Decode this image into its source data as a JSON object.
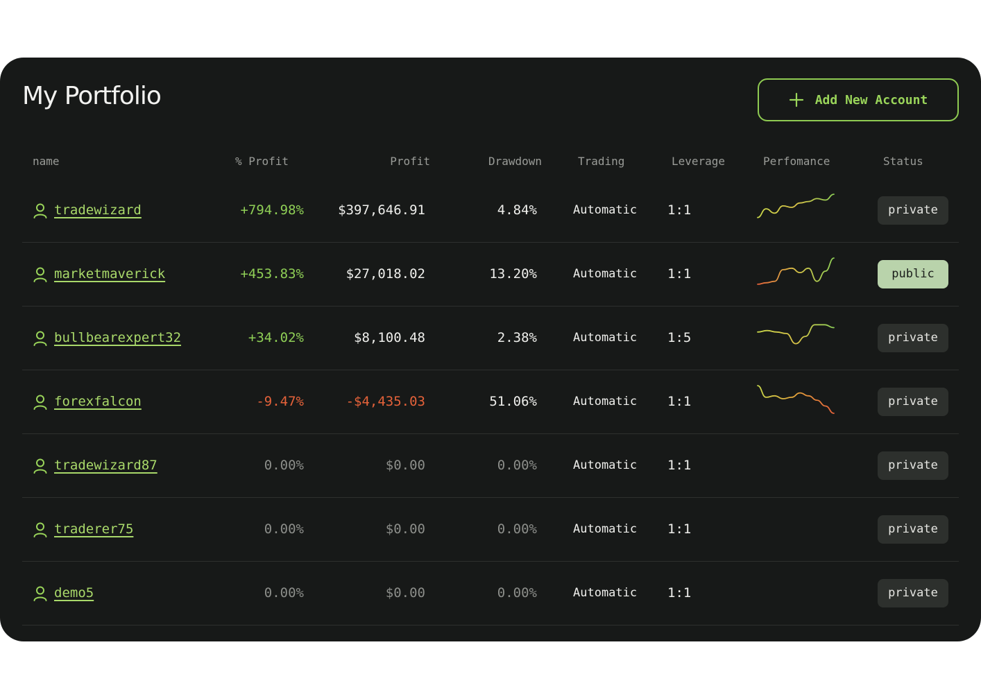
{
  "title": "My Portfolio",
  "add_button": {
    "label": "Add New Account",
    "icon": "plus-icon"
  },
  "colors": {
    "background": "#171918",
    "accent_green": "#9ad55a",
    "negative_red": "#e5623a",
    "public_badge": "#b9d3ab",
    "private_badge": "#2d302d"
  },
  "columns": [
    "name",
    "% Profit",
    "Profit",
    "Drawdown",
    "Trading",
    "Leverage",
    "Perfomance",
    "Status"
  ],
  "accounts": [
    {
      "name": "tradewizard",
      "pct_profit": "+794.98%",
      "profit": "$397,646.91",
      "drawdown": "4.84%",
      "trading": "Automatic",
      "leverage": "1:1",
      "trend": [
        0.15,
        0.45,
        0.3,
        0.55,
        0.5,
        0.65,
        0.7,
        0.8,
        0.75,
        0.95
      ],
      "status": "private"
    },
    {
      "name": "marketmaverick",
      "pct_profit": "+453.83%",
      "profit": "$27,018.02",
      "drawdown": "13.20%",
      "trading": "Automatic",
      "leverage": "1:1",
      "trend": [
        0.05,
        0.1,
        0.15,
        0.55,
        0.6,
        0.45,
        0.6,
        0.15,
        0.5,
        0.95
      ],
      "status": "public"
    },
    {
      "name": "bullbearexpert32",
      "pct_profit": "+34.02%",
      "profit": "$8,100.48",
      "drawdown": "2.38%",
      "trading": "Automatic",
      "leverage": "1:5",
      "trend": [
        0.6,
        0.65,
        0.6,
        0.55,
        0.2,
        0.45,
        0.85,
        0.85,
        0.75
      ],
      "status": "private"
    },
    {
      "name": "forexfalcon",
      "pct_profit": "-9.47%",
      "profit": "-$4,435.03",
      "drawdown": "51.06%",
      "trading": "Automatic",
      "leverage": "1:1",
      "trend": [
        0.95,
        0.55,
        0.6,
        0.5,
        0.55,
        0.7,
        0.6,
        0.45,
        0.25,
        0.0
      ],
      "status": "private"
    },
    {
      "name": "tradewizard87",
      "pct_profit": "0.00%",
      "profit": "$0.00",
      "drawdown": "0.00%",
      "trading": "Automatic",
      "leverage": "1:1",
      "trend": [],
      "status": "private"
    },
    {
      "name": "traderer75",
      "pct_profit": "0.00%",
      "profit": "$0.00",
      "drawdown": "0.00%",
      "trading": "Automatic",
      "leverage": "1:1",
      "trend": [],
      "status": "private"
    },
    {
      "name": "demo5",
      "pct_profit": "0.00%",
      "profit": "$0.00",
      "drawdown": "0.00%",
      "trading": "Automatic",
      "leverage": "1:1",
      "trend": [],
      "status": "private"
    }
  ]
}
